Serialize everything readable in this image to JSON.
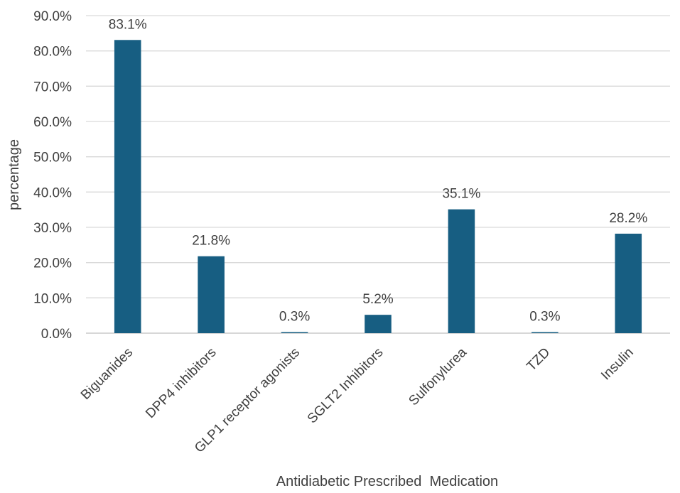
{
  "chart_data": {
    "type": "bar",
    "title": "",
    "xlabel": "Antidiabetic Prescribed  Medication",
    "ylabel": "percentage",
    "categories": [
      "Biguanides",
      "DPP4 inhibitors",
      "GLP1 receptor agonists",
      "SGLT2 Inhibitors",
      "Sulfonylurea",
      "TZD",
      "Insulin"
    ],
    "values": [
      83.1,
      21.8,
      0.3,
      5.2,
      35.1,
      0.3,
      28.2
    ],
    "data_labels": [
      "83.1%",
      "21.8%",
      "0.3%",
      "5.2%",
      "35.1%",
      "0.3%",
      "28.2%"
    ],
    "ylim": [
      0,
      90
    ],
    "yticks": [
      0,
      10,
      20,
      30,
      40,
      50,
      60,
      70,
      80,
      90
    ],
    "ytick_labels": [
      "0.0%",
      "10.0%",
      "20.0%",
      "30.0%",
      "40.0%",
      "50.0%",
      "60.0%",
      "70.0%",
      "80.0%",
      "90.0%"
    ],
    "grid": true,
    "legend": "none",
    "bar_color": "#175e82"
  }
}
